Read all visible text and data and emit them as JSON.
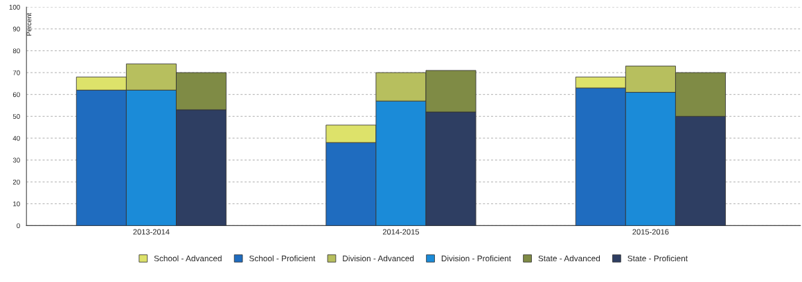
{
  "chart_data": {
    "type": "bar",
    "stacked": true,
    "ylabel": "Percent",
    "categories": [
      null,
      "2013-2014",
      null,
      null,
      null,
      null,
      "2014-2015",
      null,
      null,
      null,
      null,
      "2015-2016",
      null
    ],
    "series": [
      {
        "name": "School - Proficient",
        "color": "#1f6cbf",
        "values": [
          62,
          null,
          null,
          null,
          null,
          38,
          null,
          null,
          null,
          null,
          63,
          null,
          null
        ]
      },
      {
        "name": "School - Advanced",
        "color": "#dde26a",
        "values": [
          6,
          null,
          null,
          null,
          null,
          8,
          null,
          null,
          null,
          null,
          5,
          null,
          null
        ]
      },
      {
        "name": "Division - Proficient",
        "color": "#1b8bd8",
        "values": [
          null,
          62,
          null,
          null,
          null,
          null,
          57,
          null,
          null,
          null,
          null,
          61,
          null
        ]
      },
      {
        "name": "Division - Advanced",
        "color": "#b7bf5e",
        "values": [
          null,
          12,
          null,
          null,
          null,
          null,
          13,
          null,
          null,
          null,
          null,
          12,
          null
        ]
      },
      {
        "name": "State - Proficient",
        "color": "#2e3e62",
        "values": [
          null,
          null,
          53,
          null,
          null,
          null,
          null,
          52,
          null,
          null,
          null,
          null,
          50
        ]
      },
      {
        "name": "State - Advanced",
        "color": "#7f8b45",
        "values": [
          null,
          null,
          17,
          null,
          null,
          null,
          null,
          19,
          null,
          null,
          null,
          null,
          20
        ]
      }
    ],
    "ylim": [
      0,
      100
    ],
    "yticks": [
      0,
      10,
      20,
      30,
      40,
      50,
      60,
      70,
      80,
      90,
      100
    ],
    "grid": "y",
    "legend": "bottom"
  }
}
